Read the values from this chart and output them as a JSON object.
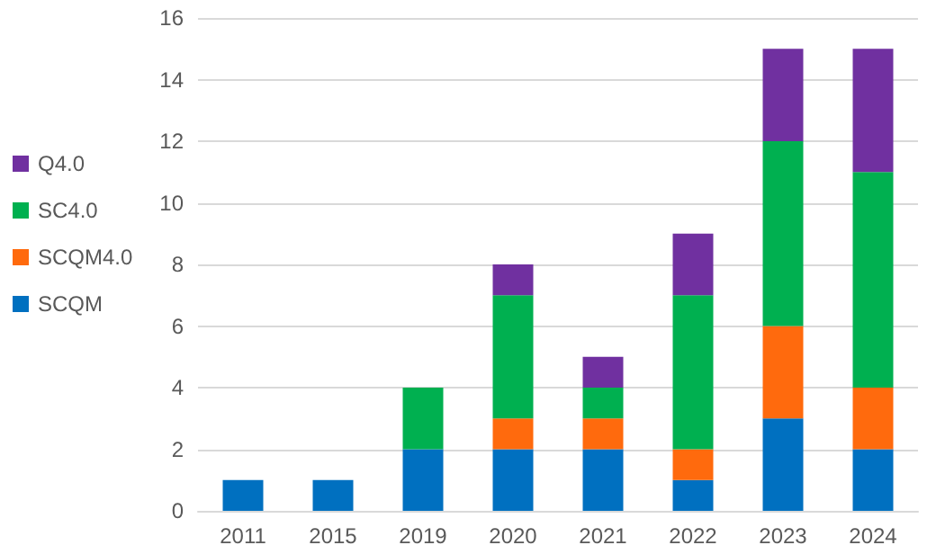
{
  "chart_data": {
    "type": "bar",
    "stacked": true,
    "categories": [
      "2011",
      "2015",
      "2019",
      "2020",
      "2021",
      "2022",
      "2023",
      "2024"
    ],
    "series": [
      {
        "name": "SCQM",
        "color": "#0070c0",
        "values": [
          1,
          1,
          2,
          2,
          2,
          1,
          3,
          2
        ]
      },
      {
        "name": "SCQM4.0",
        "color": "#ff6a0d",
        "values": [
          null,
          null,
          null,
          1,
          1,
          1,
          3,
          2
        ]
      },
      {
        "name": "SC4.0",
        "color": "#00b050",
        "values": [
          null,
          null,
          2,
          4,
          1,
          5,
          6,
          7
        ]
      },
      {
        "name": "Q4.0",
        "color": "#7030a0",
        "values": [
          null,
          null,
          null,
          1,
          1,
          2,
          3,
          4
        ]
      }
    ],
    "ylim": [
      0,
      16
    ],
    "yticks": [
      0,
      2,
      4,
      6,
      8,
      10,
      12,
      14,
      16
    ],
    "grid": "y",
    "legend": "left"
  }
}
